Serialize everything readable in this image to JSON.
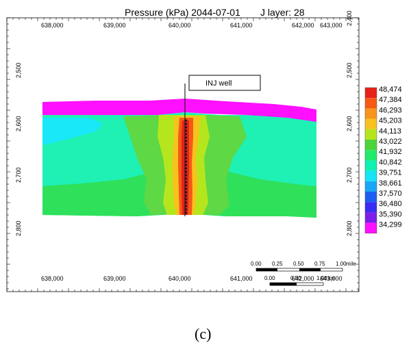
{
  "title": "Pressure (kPa) 2044-07-01",
  "layer_label": "J layer: 28",
  "x_ticks": [
    "638,000",
    "639,000",
    "640,000",
    "641,000",
    "642,000",
    "643,000"
  ],
  "y_ticks": [
    "2,400",
    "2,500",
    "2,600",
    "2,700",
    "2,800"
  ],
  "well_label": "INJ well",
  "legend": {
    "values": [
      "48,474",
      "47,384",
      "46,293",
      "45,203",
      "44,113",
      "43,022",
      "41,932",
      "40,842",
      "39,751",
      "38,661",
      "37,570",
      "36,480",
      "35,390",
      "34,299"
    ],
    "colors": [
      "#e8201a",
      "#f45a14",
      "#f7941d",
      "#f7c11e",
      "#b5e61d",
      "#4cd43a",
      "#22ea6b",
      "#0df2b0",
      "#16e4f5",
      "#1ba6f5",
      "#1c5ff0",
      "#3a2cf0",
      "#7d1ee8",
      "#ff10ff"
    ]
  },
  "scalebar": {
    "mile_ticks": [
      "0.00",
      "0.25",
      "0.50",
      "0.75",
      "1.00"
    ],
    "mile_unit": "mile",
    "km_ticks": [
      "0.00",
      "0.50",
      "1.00"
    ],
    "km_unit": "km"
  },
  "caption": "(c)"
}
